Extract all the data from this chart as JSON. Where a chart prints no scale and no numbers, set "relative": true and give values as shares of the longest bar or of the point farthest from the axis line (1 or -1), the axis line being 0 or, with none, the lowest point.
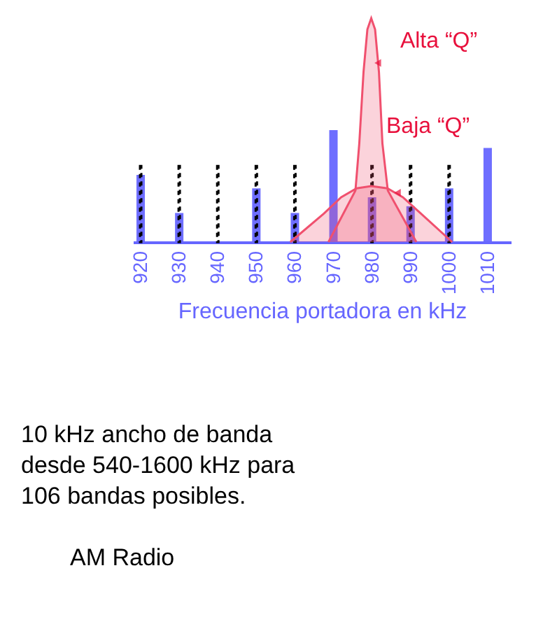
{
  "chart_data": {
    "type": "bar",
    "relative": true,
    "xlabel": "Frecuencia portadora en kHz",
    "x": [
      920,
      930,
      940,
      950,
      960,
      970,
      980,
      990,
      1000,
      1010
    ],
    "xlim": [
      918,
      1016
    ],
    "xticks": [
      920,
      930,
      940,
      950,
      960,
      970,
      980,
      990,
      {
        "value": 1000,
        "label": "1000"
      },
      {
        "value": 1010,
        "label": "1010"
      }
    ],
    "grid": false,
    "legend": false,
    "series": [
      {
        "line_style": "dotted",
        "color": "#000000",
        "values": [
          0.34,
          0.34,
          0.34,
          0.34,
          0.34,
          null,
          0.34,
          0.34,
          0.34,
          null
        ]
      },
      {
        "color": "#6666ff",
        "values": [
          0.3,
          0.13,
          0,
          0.24,
          0.13,
          0.5,
          0.2,
          0.16,
          0.24,
          0.42
        ]
      },
      {
        "type": "area",
        "color": "#f0506e",
        "x": [
          968.7,
          975.7,
          976.7,
          977.8,
          978.8,
          979.8,
          980.8,
          981.8,
          982.7,
          984.1,
          991.5
        ],
        "values": [
          0,
          0.23,
          0.44,
          0.76,
          0.95,
          1,
          0.95,
          0.76,
          0.44,
          0.23,
          0
        ]
      },
      {
        "type": "area",
        "color": "#f0506e",
        "x": [
          958.8,
          967.5,
          972,
          976,
          979.8,
          984,
          988,
          992.7,
          1000.8
        ],
        "values": [
          0,
          0.127,
          0.2,
          0.24,
          0.25,
          0.24,
          0.2,
          0.127,
          0
        ]
      }
    ],
    "annotations": [
      {
        "text": "Alta “Q”",
        "x": 981.5,
        "y": 0.8
      },
      {
        "text": "Baja “Q”",
        "x": 986.6,
        "y": 0.22
      },
      "10 kHz ancho de banda",
      "desde 540-1600 kHz para",
      "106 bandas posibles.",
      "AM Radio"
    ]
  }
}
